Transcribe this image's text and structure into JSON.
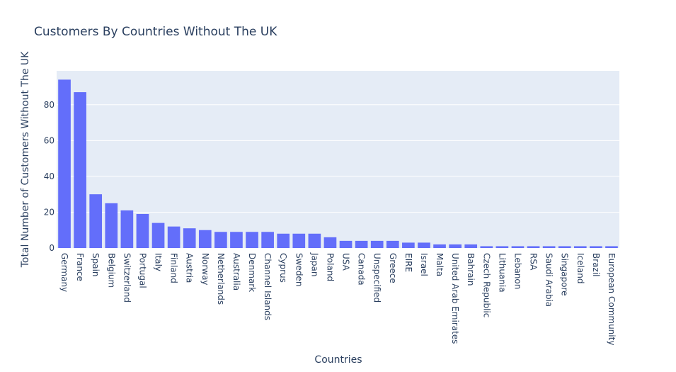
{
  "chart_data": {
    "type": "bar",
    "title": "Customers By Countries Without The UK",
    "xlabel": "Countries",
    "ylabel": "Total Number of Customers Without The UK",
    "categories": [
      "Germany",
      "France",
      "Spain",
      "Belgium",
      "Switzerland",
      "Portugal",
      "Italy",
      "Finland",
      "Austria",
      "Norway",
      "Netherlands",
      "Australia",
      "Denmark",
      "Channel Islands",
      "Cyprus",
      "Sweden",
      "Japan",
      "Poland",
      "USA",
      "Canada",
      "Unspecified",
      "Greece",
      "EIRE",
      "Israel",
      "Malta",
      "United Arab Emirates",
      "Bahrain",
      "Czech Republic",
      "Lithuania",
      "Lebanon",
      "RSA",
      "Saudi Arabia",
      "Singapore",
      "Iceland",
      "Brazil",
      "European Community"
    ],
    "values": [
      94,
      87,
      30,
      25,
      21,
      19,
      14,
      12,
      11,
      10,
      9,
      9,
      9,
      9,
      8,
      8,
      8,
      6,
      4,
      4,
      4,
      4,
      3,
      3,
      2,
      2,
      2,
      1,
      1,
      1,
      1,
      1,
      1,
      1,
      1,
      1
    ],
    "ylim": [
      0,
      98.9
    ],
    "yticks": [
      0,
      20,
      40,
      60,
      80
    ],
    "grid": true,
    "colors": {
      "bar": "#636efa",
      "plot_bg": "#e5ecf6",
      "grid": "#ffffff",
      "text": "#2a3f5f"
    }
  }
}
